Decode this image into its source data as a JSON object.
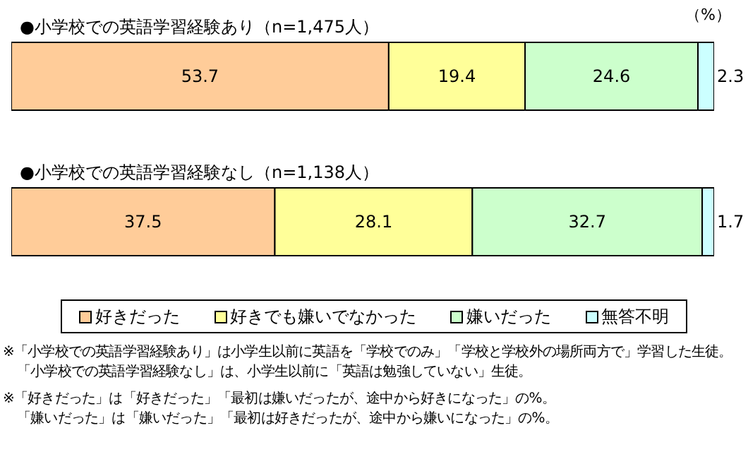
{
  "chart_data": {
    "type": "bar",
    "orientation": "horizontal",
    "stacked": true,
    "data_labels": true,
    "tick_labels": "y",
    "legend": "bottom",
    "grid": false,
    "categories": [
      "●小学校での英語学習経験あり（n=1,475人）",
      "●小学校での英語学習経験なし（n=1,138人）"
    ],
    "xlim": [
      0,
      100
    ],
    "series": [
      {
        "name": "好きだった",
        "color": "#ffcc99",
        "values": [
          53.7,
          37.5
        ]
      },
      {
        "name": "好きでも嫌いでなかった",
        "color": "#ffff99",
        "values": [
          19.4,
          28.1
        ]
      },
      {
        "name": "嫌いだった",
        "color": "#ccffcc",
        "values": [
          24.6,
          32.7
        ]
      },
      {
        "name": "無答不明",
        "color": "#ccffff",
        "values": [
          2.3,
          1.7
        ]
      }
    ],
    "annotations": [
      "（%）",
      "※「小学校での英語学習経験あり」は小学生以前に英語を「学校でのみ」「学校と学校外の場所両方で」学習した生徒。",
      "「小学校での英語学習経験なし」は、小学生以前に「英語は勉強していない」生徒。",
      "※「好きだった」は「好きだった」「最初は嫌いだったが、途中から好きになった」の%。",
      "「嫌いだった」は「嫌いだった」「最初は好きだったが、途中から嫌いになった」の%。"
    ]
  }
}
